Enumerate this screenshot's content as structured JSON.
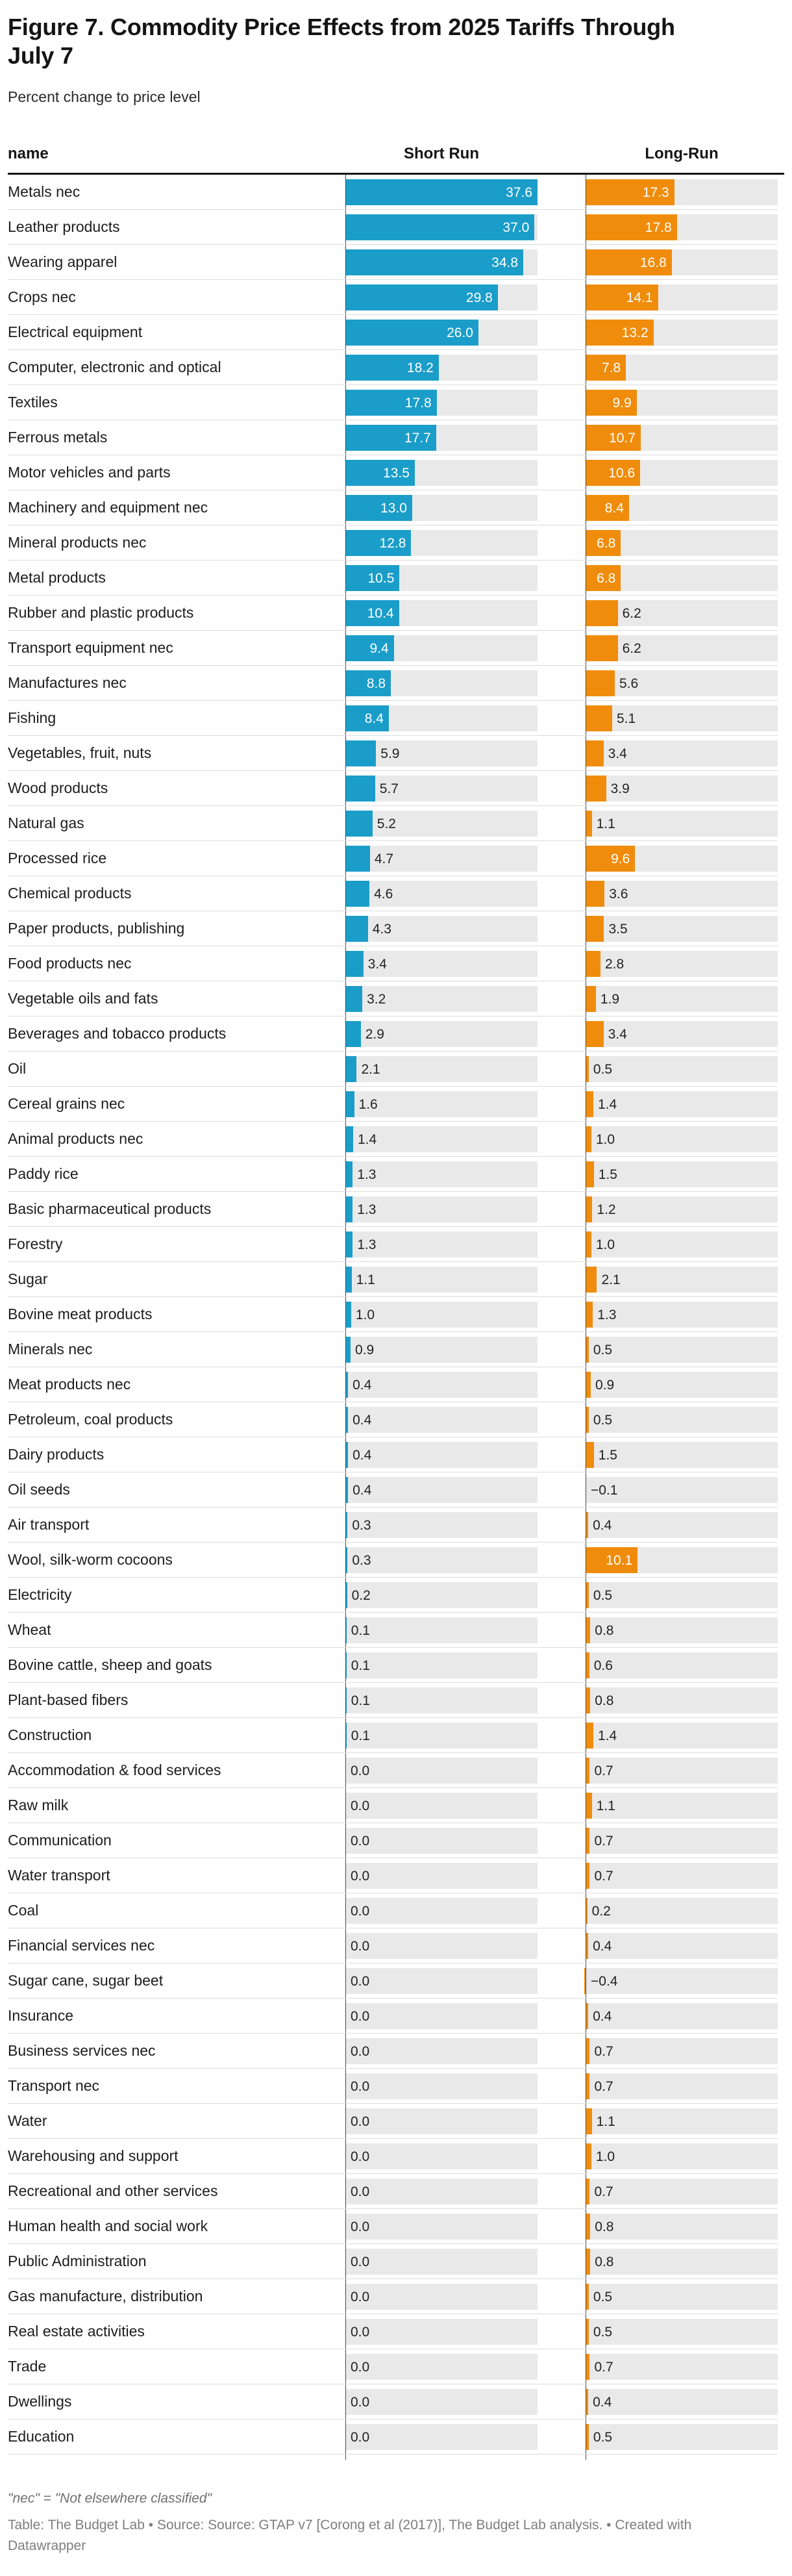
{
  "header": {
    "title": "Figure 7. Commodity Price Effects from 2025 Tariffs Through July 7",
    "subtitle": "Percent change to price level"
  },
  "columns": {
    "name": "name",
    "short": "Short Run",
    "long": "Long-Run"
  },
  "footnote": "\"nec\" = \"Not elsewhere classified\"",
  "attribution": "Table: The Budget Lab • Source: Source: GTAP v7 [Corong et al (2017)], The Budget Lab analysis. • Created with Datawrapper",
  "colors": {
    "short_bar": "#1B9DC9",
    "long_bar": "#F08C0B",
    "bar_track": "#E9E9E9",
    "axis_line": "#474747",
    "inside_label": "#FFFFFF",
    "outside_label": "#232323"
  },
  "chart_data": {
    "type": "bar",
    "orientation": "horizontal",
    "title": "Figure 7. Commodity Price Effects from 2025 Tariffs Through July 7",
    "subtitle": "Percent change to price level",
    "unit": "percent change to price level",
    "xlim": [
      0,
      37.6
    ],
    "grid": false,
    "legend_position": "column-headers",
    "categories": [
      "Metals nec",
      "Leather products",
      "Wearing apparel",
      "Crops nec",
      "Electrical equipment",
      "Computer, electronic and optical",
      "Textiles",
      "Ferrous metals",
      "Motor vehicles and parts",
      "Machinery and equipment nec",
      "Mineral products nec",
      "Metal products",
      "Rubber and plastic products",
      "Transport equipment nec",
      "Manufactures nec",
      "Fishing",
      "Vegetables, fruit, nuts",
      "Wood products",
      "Natural gas",
      "Processed rice",
      "Chemical products",
      "Paper products, publishing",
      "Food products nec",
      "Vegetable oils and fats",
      "Beverages and tobacco products",
      "Oil",
      "Cereal grains nec",
      "Animal products nec",
      "Paddy rice",
      "Basic pharmaceutical products",
      "Forestry",
      "Sugar",
      "Bovine meat products",
      "Minerals nec",
      "Meat products nec",
      "Petroleum, coal products",
      "Dairy products",
      "Oil seeds",
      "Air transport",
      "Wool, silk-worm cocoons",
      "Electricity",
      "Wheat",
      "Bovine cattle, sheep and goats",
      "Plant-based fibers",
      "Construction",
      "Accommodation & food services",
      "Raw milk",
      "Communication",
      "Water transport",
      "Coal",
      "Financial services nec",
      "Sugar cane, sugar beet",
      "Insurance",
      "Business services nec",
      "Transport nec",
      "Water",
      "Warehousing and support",
      "Recreational and other services",
      "Human health and social work",
      "Public Administration",
      "Gas manufacture, distribution",
      "Real estate activities",
      "Trade",
      "Dwellings",
      "Education"
    ],
    "series": [
      {
        "name": "Short Run",
        "color": "#1B9DC9",
        "values": [
          37.6,
          37.0,
          34.8,
          29.8,
          26.0,
          18.2,
          17.8,
          17.7,
          13.5,
          13.0,
          12.8,
          10.5,
          10.4,
          9.4,
          8.8,
          8.4,
          5.9,
          5.7,
          5.2,
          4.7,
          4.6,
          4.3,
          3.4,
          3.2,
          2.9,
          2.1,
          1.6,
          1.4,
          1.3,
          1.3,
          1.3,
          1.1,
          1.0,
          0.9,
          0.4,
          0.4,
          0.4,
          0.4,
          0.3,
          0.3,
          0.2,
          0.1,
          0.1,
          0.1,
          0.1,
          0.0,
          0.0,
          0.0,
          0.0,
          0.0,
          0.0,
          0.0,
          0.0,
          0.0,
          0.0,
          0.0,
          0.0,
          0.0,
          0.0,
          0.0,
          0.0,
          0.0,
          0.0,
          0.0,
          0.0
        ]
      },
      {
        "name": "Long-Run",
        "color": "#F08C0B",
        "values": [
          17.3,
          17.8,
          16.8,
          14.1,
          13.2,
          7.8,
          9.9,
          10.7,
          10.6,
          8.4,
          6.8,
          6.8,
          6.2,
          6.2,
          5.6,
          5.1,
          3.4,
          3.9,
          1.1,
          9.6,
          3.6,
          3.5,
          2.8,
          1.9,
          3.4,
          0.5,
          1.4,
          1.0,
          1.5,
          1.2,
          1.0,
          2.1,
          1.3,
          0.5,
          0.9,
          0.5,
          1.5,
          -0.1,
          0.4,
          10.1,
          0.5,
          0.8,
          0.6,
          0.8,
          1.4,
          0.7,
          1.1,
          0.7,
          0.7,
          0.2,
          0.4,
          -0.4,
          0.4,
          0.7,
          0.7,
          1.1,
          1.0,
          0.7,
          0.8,
          0.8,
          0.5,
          0.5,
          0.7,
          0.4,
          0.5
        ]
      }
    ]
  }
}
